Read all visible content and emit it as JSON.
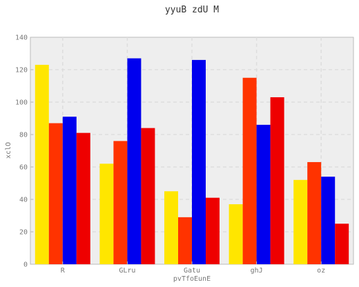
{
  "chart_data": {
    "type": "bar",
    "title": "yyuB zdU M",
    "xlabel": "pvTfoEunE",
    "ylabel": "xclO",
    "categories": [
      "R",
      "GLru",
      "Gatu",
      "ghJ",
      "oz"
    ],
    "series": [
      {
        "color": "#ffe600",
        "values": [
          123,
          62,
          45,
          37,
          52
        ]
      },
      {
        "color": "#ff3300",
        "values": [
          87,
          76,
          29,
          115,
          63
        ]
      },
      {
        "color": "#0000ee",
        "values": [
          91,
          127,
          126,
          86,
          54
        ]
      },
      {
        "color": "#ee0000",
        "values": [
          81,
          84,
          41,
          103,
          25
        ]
      }
    ],
    "ylim": [
      0,
      140
    ],
    "yticks": [
      0,
      20,
      40,
      60,
      80,
      100,
      120,
      140
    ],
    "grid": true,
    "background": "#eeeeee",
    "grid_color": "#dddddd"
  }
}
